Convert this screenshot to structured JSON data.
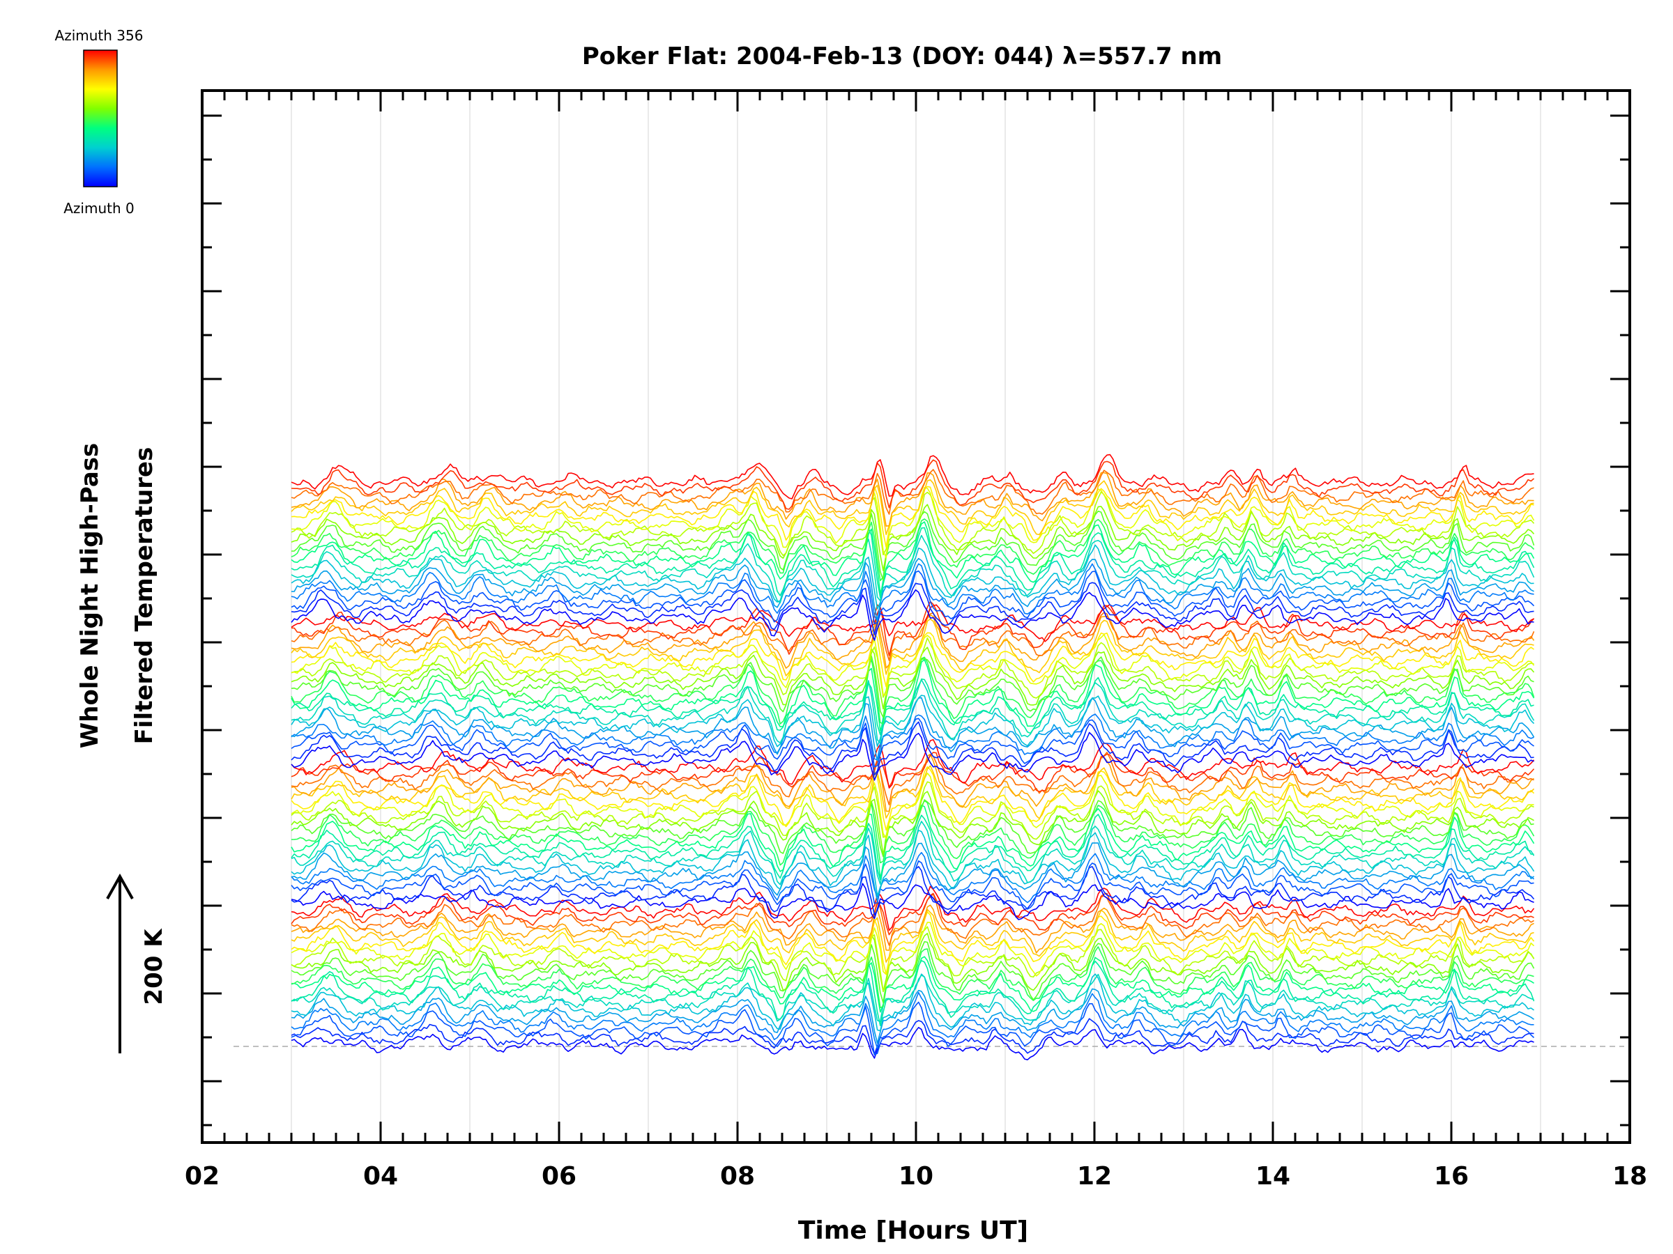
{
  "chart_data": {
    "type": "line",
    "title": "Poker Flat: 2004-Feb-13 (DOY: 044) λ=557.7 nm",
    "xlabel": "Time [Hours UT]",
    "ylabel_lines": [
      "Whole Night High-Pass",
      "Filtered Temperatures"
    ],
    "xlim": [
      2,
      18
    ],
    "x_tick_labels": [
      "02",
      "04",
      "06",
      "08",
      "10",
      "12",
      "14",
      "16",
      "18"
    ],
    "x_range": [
      3.0,
      16.95
    ],
    "scale_bar_label": "200 K",
    "scale_bar_kelvin": 200,
    "colorbar": {
      "top_label": "Azimuth 356",
      "bottom_label": "Azimuth 0",
      "colors": [
        "#ff0000",
        "#ff9900",
        "#ffff00",
        "#80ff00",
        "#00ff80",
        "#00d0d0",
        "#0070ff",
        "#0000ff"
      ]
    },
    "grid": "vertical-light",
    "stack": {
      "groups": 4,
      "traces_per_group": 20,
      "offset_kelvin": 8.2
    },
    "events": [
      {
        "t": 3.45,
        "amp": 18,
        "w": 0.15
      },
      {
        "t": 4.65,
        "amp": 20,
        "w": 0.15
      },
      {
        "t": 5.15,
        "amp": 14,
        "w": 0.12
      },
      {
        "t": 6.0,
        "amp": 8,
        "w": 0.12
      },
      {
        "t": 7.9,
        "amp": 10,
        "w": 0.15
      },
      {
        "t": 8.15,
        "amp": 24,
        "w": 0.1
      },
      {
        "t": 8.5,
        "amp": -20,
        "w": 0.07
      },
      {
        "t": 8.75,
        "amp": 12,
        "w": 0.07
      },
      {
        "t": 9.1,
        "amp": -12,
        "w": 0.1
      },
      {
        "t": 9.5,
        "amp": 30,
        "w": 0.05
      },
      {
        "t": 9.62,
        "amp": -26,
        "w": 0.04
      },
      {
        "t": 10.1,
        "amp": 34,
        "w": 0.1
      },
      {
        "t": 10.45,
        "amp": -15,
        "w": 0.1
      },
      {
        "t": 10.95,
        "amp": 10,
        "w": 0.06
      },
      {
        "t": 11.3,
        "amp": -18,
        "w": 0.12
      },
      {
        "t": 11.6,
        "amp": 10,
        "w": 0.08
      },
      {
        "t": 12.05,
        "amp": 32,
        "w": 0.12
      },
      {
        "t": 12.55,
        "amp": 10,
        "w": 0.08
      },
      {
        "t": 12.95,
        "amp": -8,
        "w": 0.15
      },
      {
        "t": 13.45,
        "amp": 12,
        "w": 0.08
      },
      {
        "t": 13.75,
        "amp": 18,
        "w": 0.08
      },
      {
        "t": 14.15,
        "amp": 16,
        "w": 0.07
      },
      {
        "t": 16.05,
        "amp": 22,
        "w": 0.06
      },
      {
        "t": 16.85,
        "amp": 10,
        "w": 0.08
      }
    ]
  }
}
